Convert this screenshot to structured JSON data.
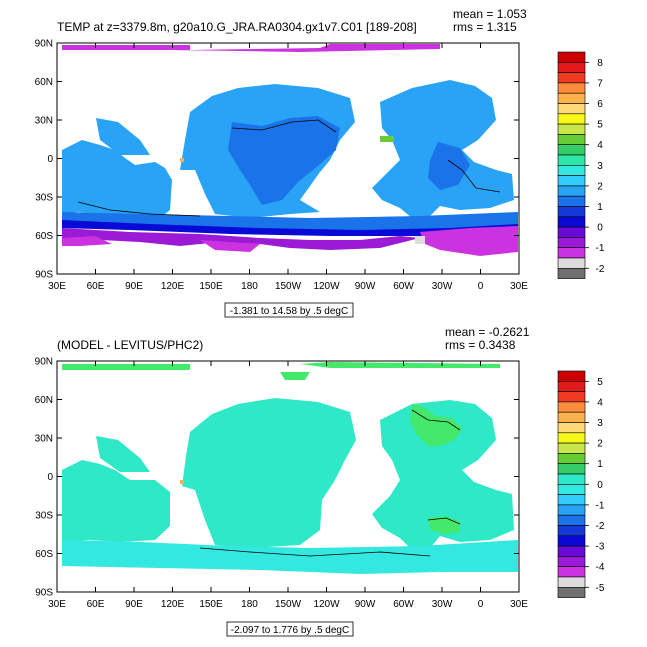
{
  "chart_data": [
    {
      "type": "heatmap",
      "title": "TEMP at z=3379.8m, g20a10.G_JRA.RA0304.gx1v7.C01 [189-208]",
      "stats": [
        "mean = 1.053",
        "rms = 1.315"
      ],
      "range_label": "-1.381 to 14.58 by .5 degC",
      "xticks": [
        "30E",
        "60E",
        "90E",
        "120E",
        "150E",
        "180",
        "150W",
        "120W",
        "90W",
        "60W",
        "30W",
        "0",
        "30E"
      ],
      "yticks": [
        "90N",
        "60N",
        "30N",
        "0",
        "30S",
        "60S",
        "90S"
      ],
      "colorbar": {
        "labels": [
          "8",
          "7",
          "6",
          "5",
          "4",
          "3",
          "2",
          "1",
          "0",
          "-1",
          "-2"
        ],
        "colors": [
          "#cc0000",
          "#e31a1c",
          "#f03b20",
          "#fd8d3c",
          "#feb24c",
          "#fed976",
          "#f7f71a",
          "#c8e64a",
          "#66cc33",
          "#33cc66",
          "#2ee8a8",
          "#33e8e0",
          "#33ccff",
          "#29a3f5",
          "#1a73e8",
          "#1439d6",
          "#0a0ad6",
          "#6a0ad6",
          "#9b1ad6",
          "#cc33e0",
          "#dcdcdc",
          "#707070"
        ]
      },
      "regions": {
        "arctic": "#cc33e0",
        "ocean": "#29a3f5",
        "deep": "#1a73e8",
        "south_band": "#0a0ad6",
        "south_purple": "#9b1ad6",
        "antarctic": "#cc33e0"
      }
    },
    {
      "type": "heatmap",
      "title": "(MODEL - LEVITUS/PHC2)",
      "stats": [
        "mean = -0.2621",
        "rms = 0.3438"
      ],
      "range_label": "-2.097 to 1.776 by .5 degC",
      "xticks": [
        "30E",
        "60E",
        "90E",
        "120E",
        "150E",
        "180",
        "150W",
        "120W",
        "90W",
        "60W",
        "30W",
        "0",
        "30E"
      ],
      "yticks": [
        "90N",
        "60N",
        "30N",
        "0",
        "30S",
        "60S",
        "90S"
      ],
      "colorbar": {
        "labels": [
          "5",
          "4",
          "3",
          "2",
          "1",
          "0",
          "-1",
          "-2",
          "-3",
          "-4",
          "-5"
        ],
        "colors": [
          "#cc0000",
          "#e31a1c",
          "#f03b20",
          "#fd8d3c",
          "#feb24c",
          "#fed976",
          "#f7f71a",
          "#c8e64a",
          "#66cc33",
          "#33cc66",
          "#2ee8c8",
          "#33e8e0",
          "#33ccff",
          "#29a3f5",
          "#1a73e8",
          "#1439d6",
          "#0a0ad6",
          "#6a0ad6",
          "#9b1ad6",
          "#cc33e0",
          "#dcdcdc",
          "#707070"
        ]
      },
      "regions": {
        "arctic": "#44e86a",
        "ocean": "#2ee8c8",
        "south_band": "#33e8e0",
        "north_atlantic": "#44e86a"
      }
    }
  ]
}
